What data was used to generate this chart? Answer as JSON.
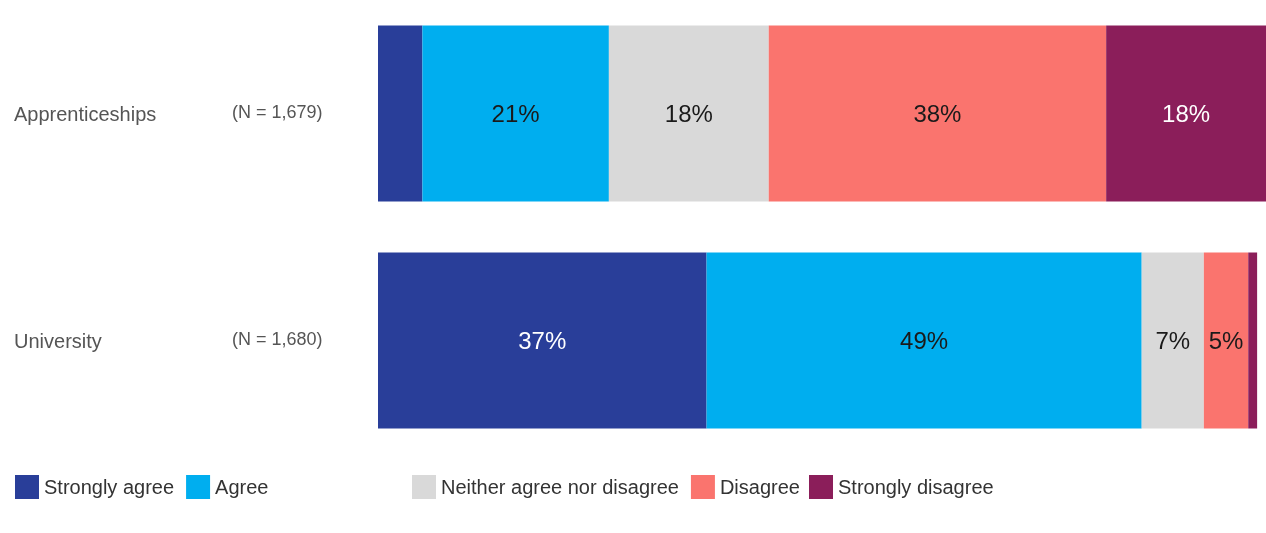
{
  "chart_data": {
    "type": "bar",
    "orientation": "horizontal",
    "stacked": true,
    "categories": [
      "Apprenticeships",
      "University"
    ],
    "xlim": [
      0,
      100
    ],
    "tick_labels": "y",
    "legend": "bottom left",
    "annotations": [
      "(N = 1,679)",
      "(N = 1,680)"
    ],
    "series": [
      {
        "name": "Strongly agree",
        "color": "#293e99",
        "values": [
          5,
          37
        ],
        "value_labels": [
          null,
          "37%"
        ]
      },
      {
        "name": "Agree",
        "color": "#00aeef",
        "values": [
          21,
          49
        ],
        "value_labels": [
          "21%",
          "49%"
        ]
      },
      {
        "name": "Neither agree nor disagree",
        "color": "#d9d9d9",
        "values": [
          18,
          7
        ],
        "value_labels": [
          "18%",
          "7%"
        ]
      },
      {
        "name": "Disagree",
        "color": "#fa746e",
        "values": [
          38,
          5
        ],
        "value_labels": [
          "38%",
          "5%"
        ]
      },
      {
        "name": "Strongly disagree",
        "color": "#8b1e5a",
        "values": [
          18,
          1
        ],
        "value_labels": [
          "18%",
          null
        ]
      }
    ]
  }
}
